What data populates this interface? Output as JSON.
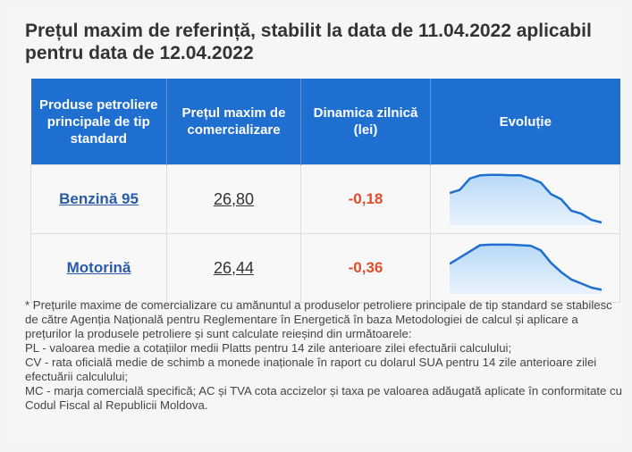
{
  "title": "Prețul maxim de referință, stabilit la data de 11.04.2022 aplicabil pentru data de 12.04.2022",
  "table": {
    "headers": [
      "Produse petroliere principale de tip standard",
      "Prețul maxim de comercializare",
      "Dinamica zilnică (lei)",
      "Evoluție"
    ],
    "rows": [
      {
        "product": "Benzină 95",
        "price": "26,80",
        "dynamic": "-0,18",
        "trend": [
          0.62,
          0.68,
          0.9,
          0.96,
          0.97,
          0.97,
          0.96,
          0.96,
          0.9,
          0.82,
          0.6,
          0.5,
          0.28,
          0.22,
          0.1,
          0.05
        ]
      },
      {
        "product": "Motorină",
        "price": "26,44",
        "dynamic": "-0,36",
        "trend": [
          0.58,
          0.7,
          0.82,
          0.94,
          0.95,
          0.95,
          0.95,
          0.94,
          0.93,
          0.84,
          0.6,
          0.42,
          0.28,
          0.2,
          0.12,
          0.08
        ]
      }
    ]
  },
  "colors": {
    "header_bg": "#1f6fd1",
    "link": "#2a5ba8",
    "negative": "#e24b2c",
    "spark_line": "#1f6fd1",
    "spark_fill": "#b7d9f7"
  },
  "footnote": [
    "* Prețurile maxime de comercializare cu amănuntul a produselor petroliere principale de tip standard se stabilesc de către Agenția Națională pentru Reglementare în Energetică în baza Metodologiei de calcul și aplicare a prețurilor la produsele petroliere și sunt calculate reieșind din următoarele:",
    "PL - valoarea medie a cotațiilor medii Platts pentru 14 zile anterioare zilei efectuării calculului;",
    "CV - rata oficială medie de schimb a monede inaționale în raport cu dolarul SUA pentru 14 zile anterioare zilei efectuării calculului;",
    "MC - marja comercială specifică; AC și TVA cota accizelor și taxa pe valoarea adăugată aplicate în conformitate cu Codul Fiscal al Republicii Moldova."
  ]
}
